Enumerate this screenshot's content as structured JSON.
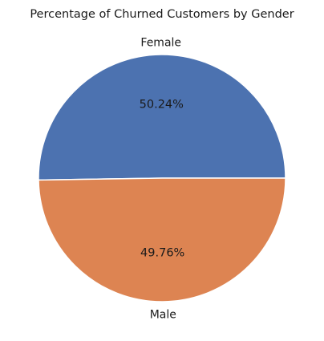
{
  "chart_data": {
    "type": "pie",
    "title": "Percentage of Churned Customers by Gender",
    "labels": [
      "Female",
      "Male"
    ],
    "values": [
      50.24,
      49.76
    ],
    "percent_labels": [
      "50.24%",
      "49.76%"
    ],
    "colors": [
      "#4c72b0",
      "#dd8452"
    ],
    "start_angle_deg": 0,
    "direction": "counterclockwise",
    "legend": "none"
  }
}
